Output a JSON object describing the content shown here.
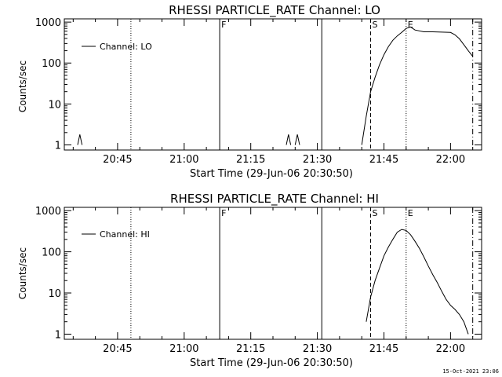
{
  "footer": {
    "timestamp": "15-Oct-2021 23:06"
  },
  "chart_data": [
    {
      "type": "line",
      "title": "RHESSI PARTICLE_RATE Channel: LO",
      "xlabel": "Start Time (29-Jun-06 20:30:50)",
      "ylabel": "Counts/sec",
      "yscale": "log",
      "xlim": [
        "20:33",
        "22:07"
      ],
      "ylim": [
        0.75,
        1200
      ],
      "xticks": [
        "20:45",
        "21:00",
        "21:15",
        "21:30",
        "21:45",
        "22:00"
      ],
      "yticks": [
        1,
        10,
        100,
        1000
      ],
      "ytick_labels": [
        "1",
        "10",
        "100",
        "1000"
      ],
      "legend": {
        "entry": "Channel: LO",
        "position": "top-left"
      },
      "markers": [
        {
          "time": "20:48",
          "style": "dotted",
          "label": ""
        },
        {
          "time": "21:08",
          "style": "solid",
          "label": "F"
        },
        {
          "time": "21:31",
          "style": "solid",
          "label": ""
        },
        {
          "time": "21:42",
          "style": "dashed",
          "label": "S"
        },
        {
          "time": "21:50",
          "style": "dotted",
          "label": "E"
        },
        {
          "time": "22:05",
          "style": "dashdot",
          "label": ""
        }
      ],
      "series": [
        {
          "name": "Channel: LO",
          "segments": [
            {
              "x": [
                "20:36",
                "20:36:30",
                "20:37"
              ],
              "y": [
                1.0,
                1.8,
                1.0
              ]
            },
            {
              "x": [
                "21:23",
                "21:23:30",
                "21:24"
              ],
              "y": [
                1.0,
                1.8,
                1.0
              ]
            },
            {
              "x": [
                "21:25",
                "21:25:30",
                "21:26"
              ],
              "y": [
                1.0,
                1.8,
                1.0
              ]
            },
            {
              "x": [
                "21:40",
                "21:41",
                "21:42",
                "21:43",
                "21:44",
                "21:45",
                "21:46",
                "21:47",
                "21:48",
                "21:49",
                "21:50",
                "21:51",
                "21:52",
                "21:54",
                "21:56",
                "21:58",
                "22:00",
                "22:01",
                "22:02",
                "22:03",
                "22:04",
                "22:05"
              ],
              "y": [
                1,
                5,
                20,
                45,
                90,
                160,
                250,
                360,
                460,
                560,
                700,
                760,
                640,
                580,
                580,
                570,
                560,
                490,
                390,
                280,
                200,
                145
              ]
            }
          ]
        }
      ]
    },
    {
      "type": "line",
      "title": "RHESSI PARTICLE_RATE Channel: HI",
      "xlabel": "Start Time (29-Jun-06 20:30:50)",
      "ylabel": "Counts/sec",
      "yscale": "log",
      "xlim": [
        "20:33",
        "22:07"
      ],
      "ylim": [
        0.75,
        1200
      ],
      "xticks": [
        "20:45",
        "21:00",
        "21:15",
        "21:30",
        "21:45",
        "22:00"
      ],
      "yticks": [
        1,
        10,
        100,
        1000
      ],
      "ytick_labels": [
        "1",
        "10",
        "100",
        "1000"
      ],
      "legend": {
        "entry": "Channel: HI",
        "position": "top-left"
      },
      "markers": [
        {
          "time": "20:48",
          "style": "dotted",
          "label": ""
        },
        {
          "time": "21:08",
          "style": "solid",
          "label": "F"
        },
        {
          "time": "21:31",
          "style": "solid",
          "label": ""
        },
        {
          "time": "21:42",
          "style": "dashed",
          "label": "S"
        },
        {
          "time": "21:50",
          "style": "dotted",
          "label": "E"
        },
        {
          "time": "22:05",
          "style": "dashdot",
          "label": ""
        }
      ],
      "series": [
        {
          "name": "Channel: HI",
          "segments": [
            {
              "x": [
                "21:41",
                "21:42",
                "21:43",
                "21:44",
                "21:45",
                "21:46",
                "21:47",
                "21:48",
                "21:49",
                "21:50",
                "21:51",
                "21:52",
                "21:53",
                "21:54",
                "21:55",
                "21:56",
                "21:57",
                "21:58",
                "21:59",
                "22:00",
                "22:01",
                "22:02",
                "22:03",
                "22:04"
              ],
              "y": [
                2,
                8,
                20,
                40,
                80,
                130,
                200,
                300,
                350,
                330,
                260,
                180,
                120,
                75,
                45,
                28,
                18,
                11,
                7,
                5,
                4,
                3,
                2,
                1
              ]
            }
          ]
        }
      ]
    }
  ]
}
